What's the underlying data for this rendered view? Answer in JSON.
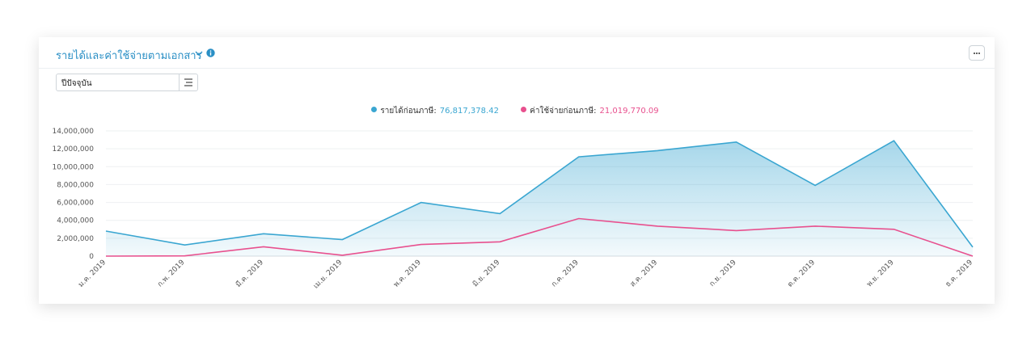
{
  "header": {
    "title": "รายได้และค่าใช้จ่ายตามเอกสาร"
  },
  "icons": {
    "chevron": "chevron-down-icon",
    "info": "info-icon",
    "more": "more-icon",
    "filter": "filter-icon"
  },
  "filter": {
    "value": "ปีปัจจุบัน"
  },
  "colors": {
    "income": "#3aa6d1",
    "expense": "#e8508e",
    "title": "#2a8fc5"
  },
  "legend": {
    "income_label": "รายได้ก่อนภาษี:",
    "income_total": "76,817,378.42",
    "expense_label": "ค่าใช้จ่ายก่อนภาษี:",
    "expense_total": "21,019,770.09"
  },
  "chart_data": {
    "type": "area",
    "categories": [
      "ม.ค. 2019",
      "ก.พ. 2019",
      "มี.ค. 2019",
      "เม.ย. 2019",
      "พ.ค. 2019",
      "มิ.ย. 2019",
      "ก.ค. 2019",
      "ส.ค. 2019",
      "ก.ย. 2019",
      "ต.ค. 2019",
      "พ.ย. 2019",
      "ธ.ค. 2019"
    ],
    "series": [
      {
        "name": "รายได้ก่อนภาษี",
        "values": [
          2800000,
          1250000,
          2500000,
          1850000,
          6000000,
          4750000,
          11100000,
          11800000,
          12750000,
          7900000,
          12900000,
          1000000
        ]
      },
      {
        "name": "ค่าใช้จ่ายก่อนภาษี",
        "values": [
          0,
          30000,
          1050000,
          100000,
          1300000,
          1600000,
          4200000,
          3350000,
          2850000,
          3350000,
          3000000,
          0
        ]
      }
    ],
    "yticks": [
      "0",
      "2,000,000",
      "4,000,000",
      "6,000,000",
      "8,000,000",
      "10,000,000",
      "12,000,000",
      "14,000,000"
    ],
    "ylim": [
      0,
      14000000
    ],
    "grid": true,
    "legend_position": "top-center"
  }
}
